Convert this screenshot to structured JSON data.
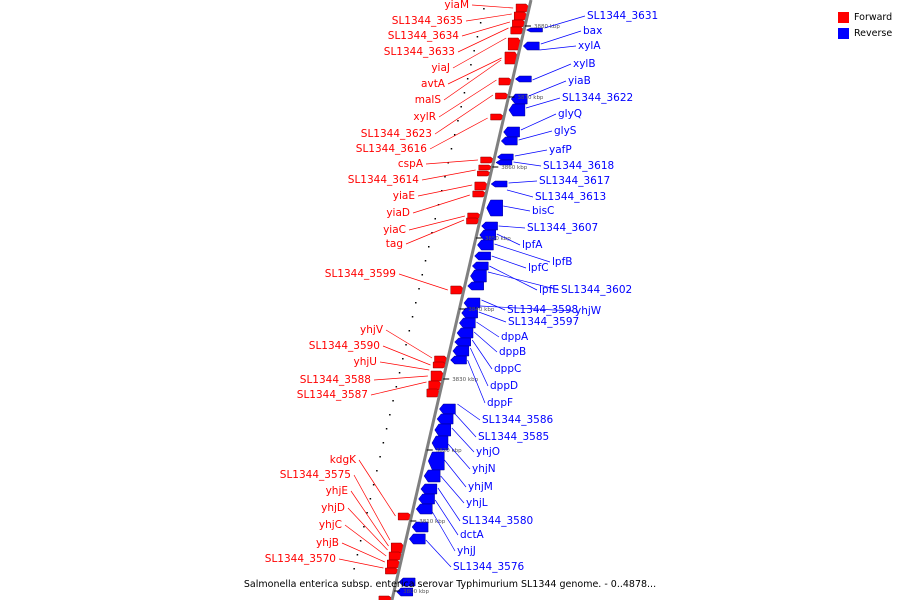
{
  "legend": {
    "forward": {
      "label": "Forward",
      "color": "#ff0000"
    },
    "reverse": {
      "label": "Reverse",
      "color": "#0000ff"
    }
  },
  "caption": "Salmonella enterica subsp. enterica serovar Typhimurium SL1344 genome. - 0..4878...",
  "backbone_color": "#808080",
  "ticks": [
    "3880 kbp",
    "3870 kbp",
    "3860 kbp",
    "3850 kbp",
    "3840 kbp",
    "3830 kbp",
    "3820 kbp",
    "3810 kbp",
    "3800 kbp"
  ],
  "forward_genes": [
    "yiaM",
    "SL1344_3635",
    "SL1344_3634",
    "SL1344_3633",
    "yiaJ",
    "avtA",
    "malS",
    "xylR",
    "SL1344_3623",
    "SL1344_3616",
    "cspA",
    "SL1344_3614",
    "yiaE",
    "yiaD",
    "yiaC",
    "tag",
    "SL1344_3599",
    "yhjV",
    "SL1344_3590",
    "yhjU",
    "SL1344_3588",
    "SL1344_3587",
    "kdgK",
    "SL1344_3575",
    "yhjE",
    "yhjD",
    "yhjC",
    "yhjB",
    "SL1344_3570"
  ],
  "reverse_genes": [
    "SL1344_3631",
    "bax",
    "xylA",
    "xylB",
    "yiaB",
    "SL1344_3622",
    "glyQ",
    "glyS",
    "yafP",
    "SL1344_3618",
    "SL1344_3617",
    "SL1344_3613",
    "bisC",
    "SL1344_3607",
    "lpfA",
    "lpfB",
    "lpfC",
    "lpfE",
    "SL1344_3602",
    "SL1344_3598",
    "yhjW",
    "SL1344_3597",
    "dppA",
    "dppB",
    "dppC",
    "dppD",
    "dppF",
    "SL1344_3586",
    "SL1344_3585",
    "yhjO",
    "yhjN",
    "yhjM",
    "yhjL",
    "SL1344_3580",
    "dctA",
    "yhjJ",
    "SL1344_3576"
  ]
}
